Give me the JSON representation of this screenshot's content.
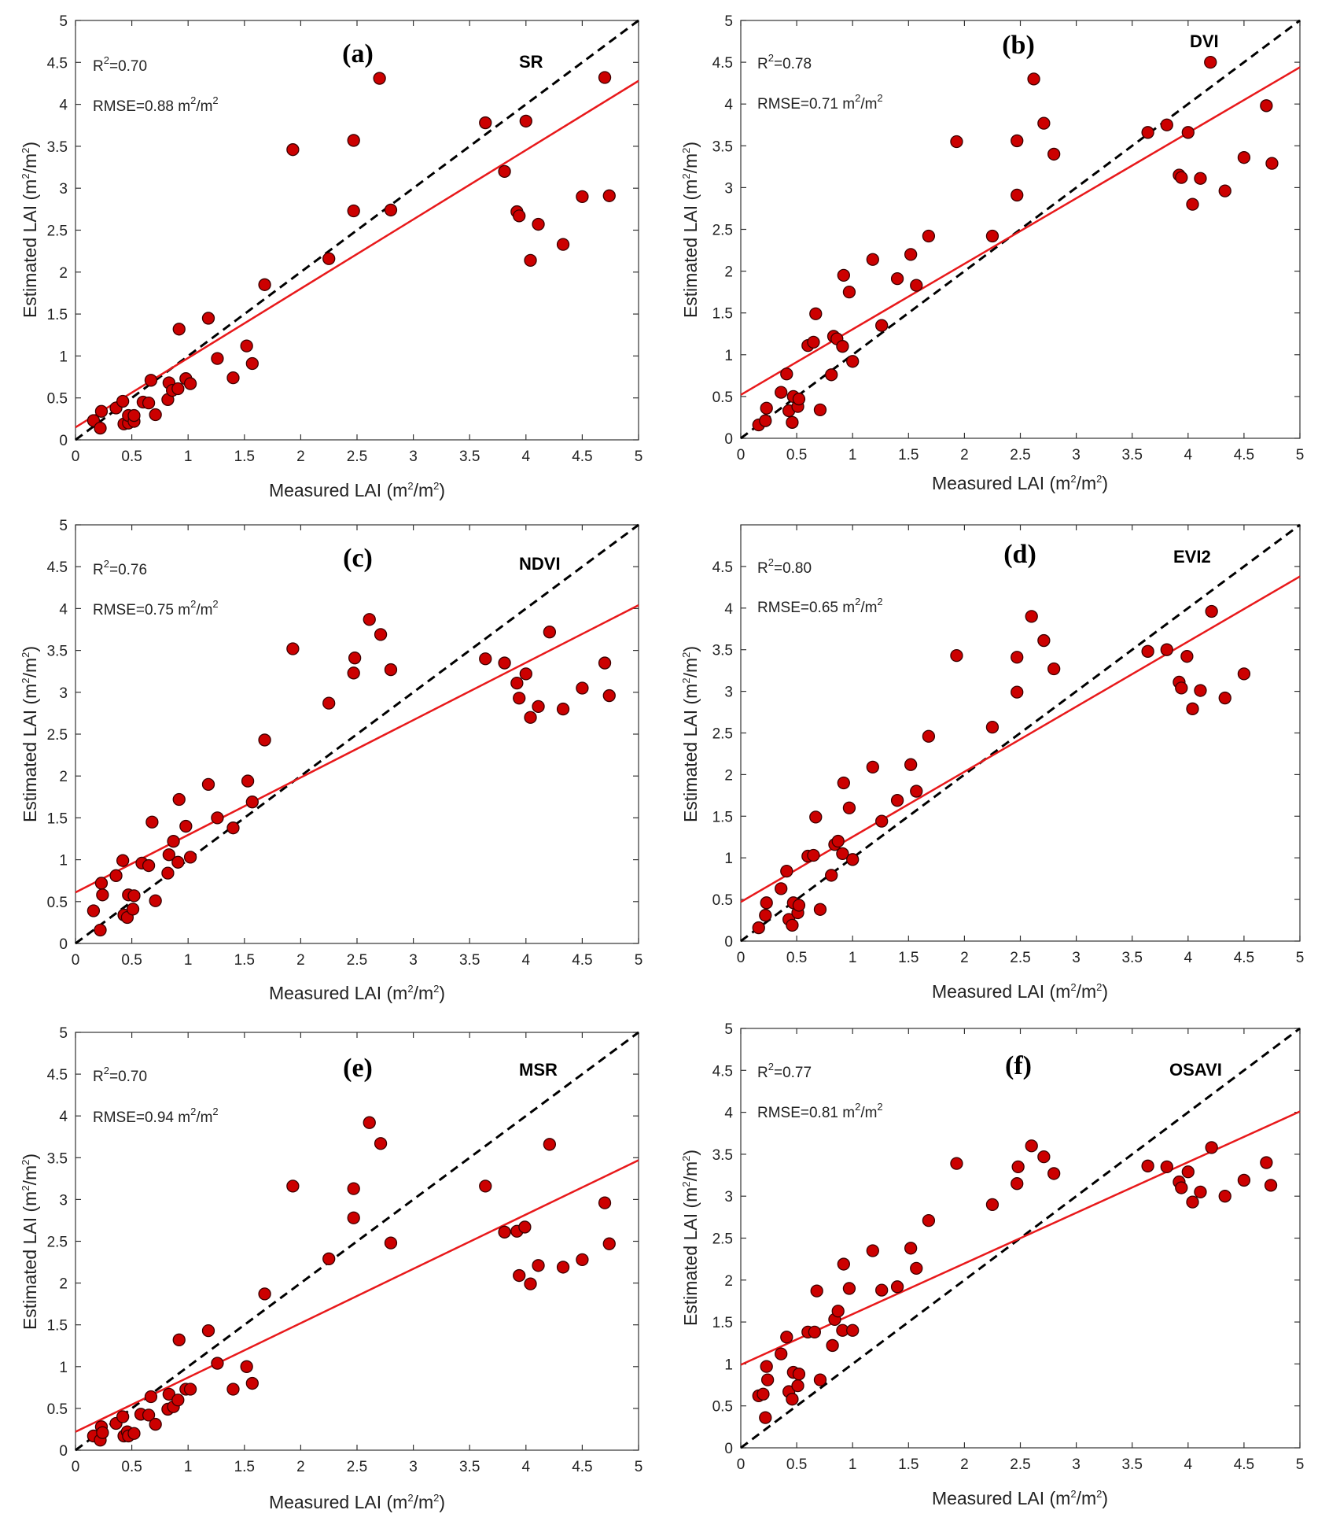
{
  "colors": {
    "point_fill": "#cc0000",
    "point_stroke": "#3a0000",
    "fit_line": "#e8191b",
    "one_to_one_line": "#000000",
    "axis": "#333333"
  },
  "chart_data": [
    {
      "type": "scatter",
      "panel": "(a)",
      "index": "SR",
      "r2_text": "=0.70",
      "rmse_text": "RMSE=0.88 m",
      "xlabel": "Measured LAI (m",
      "ylabel": "Estimated LAI (m",
      "xlim": [
        0,
        5
      ],
      "ylim": [
        0,
        5
      ],
      "xticks": [
        "0",
        "0.5",
        "1",
        "1.5",
        "2",
        "2.5",
        "3",
        "3.5",
        "4",
        "4.5",
        "5"
      ],
      "yticks": [
        "0",
        "0.5",
        "1",
        "1.5",
        "2",
        "2.5",
        "3",
        "3.5",
        "4",
        "4.5",
        "5"
      ],
      "fit_line": [
        [
          0,
          0.15
        ],
        [
          5,
          4.28
        ]
      ],
      "points": [
        [
          0.16,
          0.23
        ],
        [
          0.22,
          0.14
        ],
        [
          0.23,
          0.34
        ],
        [
          0.36,
          0.38
        ],
        [
          0.42,
          0.46
        ],
        [
          0.43,
          0.19
        ],
        [
          0.47,
          0.2
        ],
        [
          0.47,
          0.29
        ],
        [
          0.52,
          0.22
        ],
        [
          0.52,
          0.29
        ],
        [
          0.6,
          0.45
        ],
        [
          0.65,
          0.44
        ],
        [
          0.67,
          0.71
        ],
        [
          0.71,
          0.3
        ],
        [
          0.82,
          0.48
        ],
        [
          0.83,
          0.68
        ],
        [
          0.86,
          0.59
        ],
        [
          0.91,
          0.61
        ],
        [
          0.92,
          1.32
        ],
        [
          0.98,
          0.73
        ],
        [
          1.02,
          0.67
        ],
        [
          1.18,
          1.45
        ],
        [
          1.26,
          0.97
        ],
        [
          1.4,
          0.74
        ],
        [
          1.52,
          1.12
        ],
        [
          1.57,
          0.91
        ],
        [
          1.68,
          1.85
        ],
        [
          1.93,
          3.46
        ],
        [
          2.25,
          2.16
        ],
        [
          2.47,
          2.73
        ],
        [
          2.47,
          3.57
        ],
        [
          2.7,
          4.31
        ],
        [
          2.8,
          2.74
        ],
        [
          3.64,
          3.78
        ],
        [
          3.81,
          3.2
        ],
        [
          3.92,
          2.72
        ],
        [
          3.94,
          2.67
        ],
        [
          4.0,
          3.8
        ],
        [
          4.04,
          2.14
        ],
        [
          4.11,
          2.57
        ],
        [
          4.33,
          2.33
        ],
        [
          4.5,
          2.9
        ],
        [
          4.7,
          4.32
        ],
        [
          4.74,
          2.91
        ]
      ]
    },
    {
      "type": "scatter",
      "panel": "(b)",
      "index": "DVI",
      "r2_text": "=0.78",
      "rmse_text": "RMSE=0.71 m",
      "xlabel": "Measured LAI (m",
      "ylabel": "Estimated LAI (m",
      "xlim": [
        0,
        5
      ],
      "ylim": [
        0,
        5
      ],
      "xticks": [
        "0",
        "0.5",
        "1",
        "1.5",
        "2",
        "2.5",
        "3",
        "3.5",
        "4",
        "4.5",
        "5"
      ],
      "yticks": [
        "0",
        "0.5",
        "1",
        "1.5",
        "2",
        "2.5",
        "3",
        "3.5",
        "4",
        "4.5",
        "5"
      ],
      "fit_line": [
        [
          0,
          0.52
        ],
        [
          5,
          4.44
        ]
      ],
      "points": [
        [
          0.16,
          0.16
        ],
        [
          0.22,
          0.21
        ],
        [
          0.23,
          0.36
        ],
        [
          0.36,
          0.55
        ],
        [
          0.41,
          0.77
        ],
        [
          0.43,
          0.33
        ],
        [
          0.46,
          0.19
        ],
        [
          0.47,
          0.5
        ],
        [
          0.51,
          0.38
        ],
        [
          0.52,
          0.47
        ],
        [
          0.6,
          1.11
        ],
        [
          0.65,
          1.15
        ],
        [
          0.67,
          1.49
        ],
        [
          0.71,
          0.34
        ],
        [
          0.81,
          0.76
        ],
        [
          0.83,
          1.22
        ],
        [
          0.86,
          1.19
        ],
        [
          0.91,
          1.1
        ],
        [
          0.92,
          1.95
        ],
        [
          0.97,
          1.75
        ],
        [
          1.0,
          0.92
        ],
        [
          1.18,
          2.14
        ],
        [
          1.26,
          1.35
        ],
        [
          1.4,
          1.91
        ],
        [
          1.52,
          2.2
        ],
        [
          1.57,
          1.83
        ],
        [
          1.68,
          2.42
        ],
        [
          1.93,
          3.55
        ],
        [
          2.25,
          2.42
        ],
        [
          2.47,
          2.91
        ],
        [
          2.47,
          3.56
        ],
        [
          2.62,
          4.3
        ],
        [
          2.71,
          3.77
        ],
        [
          2.8,
          3.4
        ],
        [
          3.64,
          3.66
        ],
        [
          3.81,
          3.75
        ],
        [
          3.92,
          3.15
        ],
        [
          3.94,
          3.12
        ],
        [
          4.0,
          3.66
        ],
        [
          4.04,
          2.8
        ],
        [
          4.11,
          3.11
        ],
        [
          4.2,
          4.5
        ],
        [
          4.33,
          2.96
        ],
        [
          4.5,
          3.36
        ],
        [
          4.7,
          3.98
        ],
        [
          4.75,
          3.29
        ]
      ]
    },
    {
      "type": "scatter",
      "panel": "(c)",
      "index": "NDVI",
      "r2_text": "=0.76",
      "rmse_text": "RMSE=0.75 m",
      "xlabel": "Measured LAI (m",
      "ylabel": "Estimated LAI (m",
      "xlim": [
        0,
        5
      ],
      "ylim": [
        0,
        5
      ],
      "xticks": [
        "0",
        "0.5",
        "1",
        "1.5",
        "2",
        "2.5",
        "3",
        "3.5",
        "4",
        "4.5",
        "5"
      ],
      "yticks": [
        "0",
        "0.5",
        "1",
        "1.5",
        "2",
        "2.5",
        "3",
        "3.5",
        "4",
        "4.5",
        "5"
      ],
      "fit_line": [
        [
          0,
          0.61
        ],
        [
          5,
          4.04
        ]
      ],
      "points": [
        [
          0.16,
          0.39
        ],
        [
          0.22,
          0.16
        ],
        [
          0.23,
          0.72
        ],
        [
          0.24,
          0.58
        ],
        [
          0.36,
          0.81
        ],
        [
          0.42,
          0.99
        ],
        [
          0.43,
          0.34
        ],
        [
          0.46,
          0.31
        ],
        [
          0.47,
          0.58
        ],
        [
          0.51,
          0.41
        ],
        [
          0.52,
          0.57
        ],
        [
          0.59,
          0.96
        ],
        [
          0.65,
          0.93
        ],
        [
          0.68,
          1.45
        ],
        [
          0.71,
          0.51
        ],
        [
          0.82,
          0.84
        ],
        [
          0.83,
          1.06
        ],
        [
          0.87,
          1.22
        ],
        [
          0.91,
          0.97
        ],
        [
          0.92,
          1.72
        ],
        [
          0.98,
          1.4
        ],
        [
          1.02,
          1.03
        ],
        [
          1.18,
          1.9
        ],
        [
          1.26,
          1.5
        ],
        [
          1.4,
          1.38
        ],
        [
          1.53,
          1.94
        ],
        [
          1.57,
          1.69
        ],
        [
          1.68,
          2.43
        ],
        [
          1.93,
          3.52
        ],
        [
          2.25,
          2.87
        ],
        [
          2.47,
          3.23
        ],
        [
          2.48,
          3.41
        ],
        [
          2.61,
          3.87
        ],
        [
          2.71,
          3.69
        ],
        [
          2.8,
          3.27
        ],
        [
          3.64,
          3.4
        ],
        [
          3.81,
          3.35
        ],
        [
          3.92,
          3.11
        ],
        [
          3.94,
          2.93
        ],
        [
          4.0,
          3.22
        ],
        [
          4.04,
          2.7
        ],
        [
          4.11,
          2.83
        ],
        [
          4.21,
          3.72
        ],
        [
          4.33,
          2.8
        ],
        [
          4.5,
          3.05
        ],
        [
          4.7,
          3.35
        ],
        [
          4.74,
          2.96
        ]
      ]
    },
    {
      "type": "scatter",
      "panel": "(d)",
      "index": "EVI2",
      "r2_text": "=0.80",
      "rmse_text": "RMSE=0.65 m",
      "xlabel": "Measured LAI (m",
      "ylabel": "Estimated LAI (m",
      "xlim": [
        0,
        5
      ],
      "ylim": [
        0,
        5
      ],
      "xticks": [
        "0",
        "0.5",
        "1",
        "1.5",
        "2",
        "2.5",
        "3",
        "3.5",
        "4",
        "4.5",
        "5"
      ],
      "yticks": [
        "0",
        "0.5",
        "1",
        "1.5",
        "2",
        "2.5",
        "3",
        "3.5",
        "4",
        "4.5"
      ],
      "fit_line": [
        [
          0,
          0.47
        ],
        [
          5,
          4.38
        ]
      ],
      "points": [
        [
          0.16,
          0.16
        ],
        [
          0.22,
          0.31
        ],
        [
          0.23,
          0.46
        ],
        [
          0.36,
          0.63
        ],
        [
          0.41,
          0.84
        ],
        [
          0.43,
          0.26
        ],
        [
          0.46,
          0.19
        ],
        [
          0.47,
          0.46
        ],
        [
          0.51,
          0.34
        ],
        [
          0.52,
          0.43
        ],
        [
          0.6,
          1.02
        ],
        [
          0.65,
          1.03
        ],
        [
          0.67,
          1.49
        ],
        [
          0.71,
          0.38
        ],
        [
          0.81,
          0.79
        ],
        [
          0.84,
          1.16
        ],
        [
          0.87,
          1.2
        ],
        [
          0.91,
          1.05
        ],
        [
          0.92,
          1.9
        ],
        [
          0.97,
          1.6
        ],
        [
          1.0,
          0.98
        ],
        [
          1.18,
          2.09
        ],
        [
          1.26,
          1.44
        ],
        [
          1.4,
          1.69
        ],
        [
          1.52,
          2.12
        ],
        [
          1.57,
          1.8
        ],
        [
          1.68,
          2.46
        ],
        [
          1.93,
          3.43
        ],
        [
          2.25,
          2.57
        ],
        [
          2.47,
          2.99
        ],
        [
          2.47,
          3.41
        ],
        [
          2.6,
          3.9
        ],
        [
          2.71,
          3.61
        ],
        [
          2.8,
          3.27
        ],
        [
          3.64,
          3.48
        ],
        [
          3.81,
          3.5
        ],
        [
          3.92,
          3.11
        ],
        [
          3.94,
          3.04
        ],
        [
          3.99,
          3.42
        ],
        [
          4.04,
          2.79
        ],
        [
          4.11,
          3.01
        ],
        [
          4.21,
          3.96
        ],
        [
          4.33,
          2.92
        ],
        [
          4.5,
          3.21
        ]
      ]
    },
    {
      "type": "scatter",
      "panel": "(e)",
      "index": "MSR",
      "r2_text": "=0.70",
      "rmse_text": "RMSE=0.94 m",
      "xlabel": "Measured LAI (m",
      "ylabel": "Estimated LAI (m",
      "xlim": [
        0,
        5
      ],
      "ylim": [
        0,
        5
      ],
      "xticks": [
        "0",
        "0.5",
        "1",
        "1.5",
        "2",
        "2.5",
        "3",
        "3.5",
        "4",
        "4.5",
        "5"
      ],
      "yticks": [
        "0",
        "0.5",
        "1",
        "1.5",
        "2",
        "2.5",
        "3",
        "3.5",
        "4",
        "4.5",
        "5"
      ],
      "fit_line": [
        [
          0,
          0.22
        ],
        [
          5,
          3.47
        ]
      ],
      "points": [
        [
          0.16,
          0.17
        ],
        [
          0.22,
          0.12
        ],
        [
          0.23,
          0.28
        ],
        [
          0.24,
          0.21
        ],
        [
          0.36,
          0.32
        ],
        [
          0.42,
          0.4
        ],
        [
          0.43,
          0.17
        ],
        [
          0.46,
          0.22
        ],
        [
          0.47,
          0.17
        ],
        [
          0.52,
          0.2
        ],
        [
          0.58,
          0.43
        ],
        [
          0.65,
          0.42
        ],
        [
          0.67,
          0.64
        ],
        [
          0.71,
          0.31
        ],
        [
          0.82,
          0.49
        ],
        [
          0.83,
          0.67
        ],
        [
          0.87,
          0.52
        ],
        [
          0.91,
          0.6
        ],
        [
          0.92,
          1.32
        ],
        [
          0.98,
          0.73
        ],
        [
          1.02,
          0.73
        ],
        [
          1.18,
          1.43
        ],
        [
          1.26,
          1.04
        ],
        [
          1.4,
          0.73
        ],
        [
          1.52,
          1.0
        ],
        [
          1.57,
          0.8
        ],
        [
          1.68,
          1.87
        ],
        [
          1.93,
          3.16
        ],
        [
          2.25,
          2.29
        ],
        [
          2.47,
          3.13
        ],
        [
          2.47,
          2.78
        ],
        [
          2.61,
          3.92
        ],
        [
          2.71,
          3.67
        ],
        [
          2.8,
          2.48
        ],
        [
          3.64,
          3.16
        ],
        [
          3.81,
          2.61
        ],
        [
          3.92,
          2.62
        ],
        [
          3.94,
          2.09
        ],
        [
          3.99,
          2.67
        ],
        [
          4.04,
          1.99
        ],
        [
          4.11,
          2.21
        ],
        [
          4.21,
          3.66
        ],
        [
          4.33,
          2.19
        ],
        [
          4.5,
          2.28
        ],
        [
          4.7,
          2.96
        ],
        [
          4.74,
          2.47
        ]
      ]
    },
    {
      "type": "scatter",
      "panel": "(f)",
      "index": "OSAVI",
      "r2_text": "=0.77",
      "rmse_text": "RMSE=0.81 m",
      "xlabel": "Measured LAI (m",
      "ylabel": "Estimated LAI (m",
      "xlim": [
        0,
        5
      ],
      "ylim": [
        0,
        5
      ],
      "xticks": [
        "0",
        "0.5",
        "1",
        "1.5",
        "2",
        "2.5",
        "3",
        "3.5",
        "4",
        "4.5",
        "5"
      ],
      "yticks": [
        "0",
        "0.5",
        "1",
        "1.5",
        "2",
        "2.5",
        "3",
        "3.5",
        "4",
        "4.5",
        "5"
      ],
      "fit_line": [
        [
          0,
          0.99
        ],
        [
          5,
          4.01
        ]
      ],
      "points": [
        [
          0.16,
          0.62
        ],
        [
          0.2,
          0.64
        ],
        [
          0.22,
          0.36
        ],
        [
          0.23,
          0.97
        ],
        [
          0.24,
          0.81
        ],
        [
          0.36,
          1.12
        ],
        [
          0.41,
          1.32
        ],
        [
          0.43,
          0.67
        ],
        [
          0.46,
          0.58
        ],
        [
          0.47,
          0.9
        ],
        [
          0.51,
          0.74
        ],
        [
          0.52,
          0.88
        ],
        [
          0.6,
          1.38
        ],
        [
          0.66,
          1.38
        ],
        [
          0.68,
          1.87
        ],
        [
          0.71,
          0.81
        ],
        [
          0.82,
          1.22
        ],
        [
          0.84,
          1.53
        ],
        [
          0.87,
          1.63
        ],
        [
          0.91,
          1.4
        ],
        [
          0.92,
          2.19
        ],
        [
          0.97,
          1.9
        ],
        [
          1.0,
          1.4
        ],
        [
          1.18,
          2.35
        ],
        [
          1.26,
          1.88
        ],
        [
          1.4,
          1.92
        ],
        [
          1.52,
          2.38
        ],
        [
          1.57,
          2.14
        ],
        [
          1.68,
          2.71
        ],
        [
          1.93,
          3.39
        ],
        [
          2.25,
          2.9
        ],
        [
          2.47,
          3.15
        ],
        [
          2.48,
          3.35
        ],
        [
          2.6,
          3.6
        ],
        [
          2.71,
          3.47
        ],
        [
          2.8,
          3.27
        ],
        [
          3.64,
          3.36
        ],
        [
          3.81,
          3.35
        ],
        [
          3.92,
          3.17
        ],
        [
          3.94,
          3.1
        ],
        [
          4.0,
          3.29
        ],
        [
          4.04,
          2.93
        ],
        [
          4.11,
          3.05
        ],
        [
          4.21,
          3.58
        ],
        [
          4.33,
          3.0
        ],
        [
          4.5,
          3.19
        ],
        [
          4.7,
          3.4
        ],
        [
          4.74,
          3.13
        ]
      ]
    }
  ]
}
